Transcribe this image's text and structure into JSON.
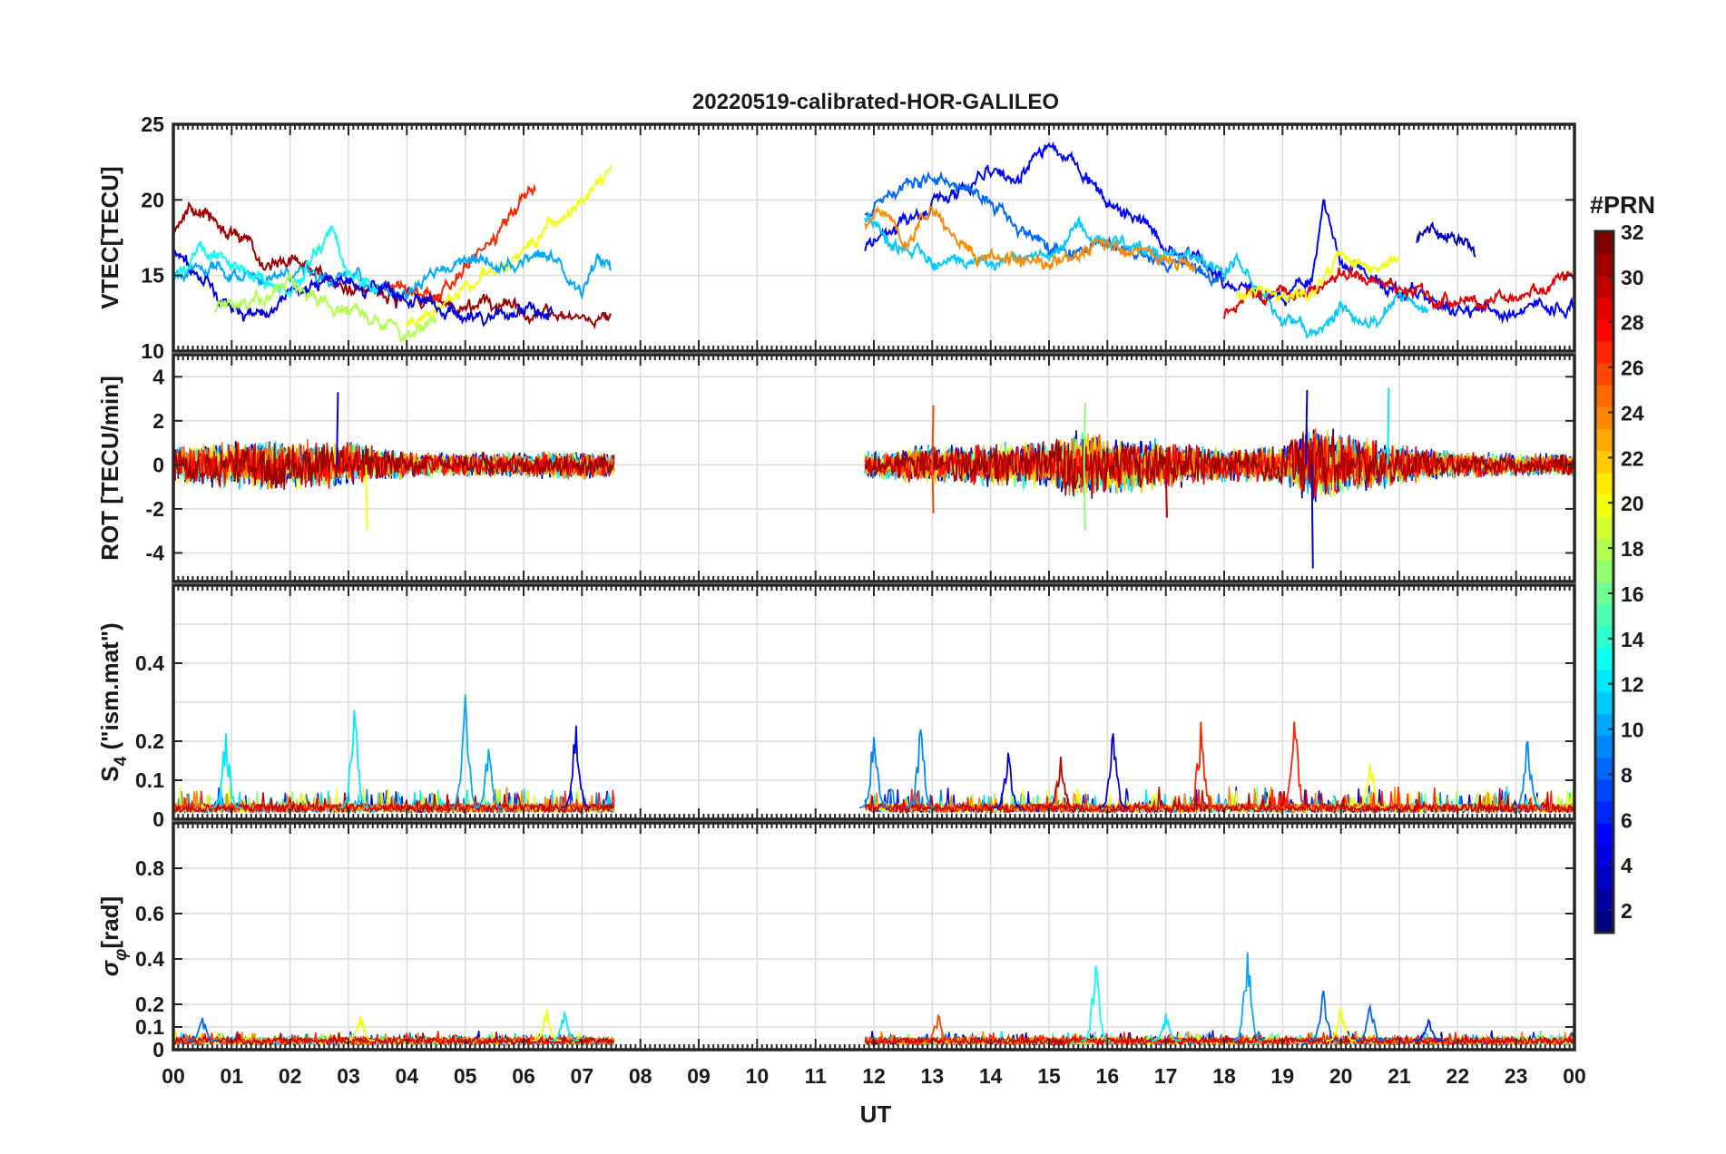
{
  "figure": {
    "title": "20220519-calibrated-HOR-GALILEO",
    "xlabel": "UT"
  },
  "x_ticks": [
    "00",
    "01",
    "02",
    "03",
    "04",
    "05",
    "06",
    "07",
    "08",
    "09",
    "10",
    "11",
    "12",
    "13",
    "14",
    "15",
    "16",
    "17",
    "18",
    "19",
    "20",
    "21",
    "22",
    "23",
    "00"
  ],
  "colorbar": {
    "title": "#PRN",
    "range": [
      1,
      32
    ],
    "ticks": [
      "2",
      "4",
      "6",
      "8",
      "10",
      "12",
      "14",
      "16",
      "18",
      "20",
      "22",
      "24",
      "26",
      "28",
      "30",
      "32"
    ],
    "colormap": "jet"
  },
  "chart_data": [
    {
      "type": "line",
      "id": "vtec",
      "ylabel": "VTEC[TECU]",
      "xlim": [
        0,
        24
      ],
      "ylim": [
        10,
        25
      ],
      "yticks": [
        "10",
        "15",
        "20",
        "25"
      ],
      "grid": true,
      "data_gaps_hours": [
        [
          7.55,
          11.85
        ]
      ],
      "series_note_prn_color": "series colored by PRN via colorbar",
      "series": [
        {
          "prn": 31,
          "points": [
            [
              0,
              18.5
            ],
            [
              0.5,
              19.2
            ],
            [
              1,
              18
            ],
            [
              1.5,
              16.5
            ],
            [
              2,
              15.8
            ],
            [
              2.5,
              15.2
            ],
            [
              3,
              14
            ],
            [
              3.5,
              13.6
            ],
            [
              4,
              13.5
            ],
            [
              4.5,
              13.4
            ],
            [
              5,
              12.8
            ],
            [
              5.5,
              13
            ],
            [
              6,
              12.6
            ],
            [
              6.5,
              12.2
            ],
            [
              7,
              12
            ],
            [
              7.5,
              12.5
            ]
          ],
          "segments": [
            [
              0,
              4.5
            ]
          ]
        },
        {
          "prn": 27,
          "points": [
            [
              3.6,
              14.5
            ],
            [
              4,
              13.8
            ],
            [
              4.5,
              14
            ],
            [
              5,
              15.2
            ],
            [
              5.5,
              17.5
            ],
            [
              6,
              20.2
            ],
            [
              6.2,
              20.6
            ]
          ]
        },
        {
          "prn": 20,
          "points": [
            [
              4,
              12
            ],
            [
              4.5,
              12.5
            ],
            [
              5,
              14
            ],
            [
              5.5,
              15.5
            ],
            [
              6,
              16.5
            ],
            [
              6.5,
              18.5
            ],
            [
              7,
              19.8
            ],
            [
              7.5,
              21.8
            ]
          ]
        },
        {
          "prn": 10,
          "points": [
            [
              0,
              15
            ],
            [
              0.5,
              15.5
            ],
            [
              1,
              15
            ],
            [
              2,
              15.3
            ],
            [
              3,
              14.5
            ],
            [
              4,
              14
            ],
            [
              5,
              16
            ],
            [
              6,
              15.8
            ],
            [
              6.5,
              16.5
            ],
            [
              7,
              14
            ],
            [
              7.3,
              16
            ],
            [
              7.5,
              15.3
            ]
          ]
        },
        {
          "prn": 4,
          "points": [
            [
              0,
              16.5
            ],
            [
              1,
              13
            ],
            [
              1.5,
              12
            ],
            [
              2,
              14
            ],
            [
              3,
              14.5
            ],
            [
              4,
              13.8
            ],
            [
              5,
              12.2
            ],
            [
              6,
              12.5
            ],
            [
              6.5,
              12.7
            ]
          ]
        },
        {
          "prn": 13,
          "points": [
            [
              0,
              15
            ],
            [
              0.5,
              16.5
            ],
            [
              1,
              15.5
            ],
            [
              2,
              14
            ],
            [
              2.7,
              17.9
            ],
            [
              3,
              15
            ],
            [
              3.5,
              14
            ]
          ]
        },
        {
          "prn": 18,
          "points": [
            [
              0.7,
              12.8
            ],
            [
              1,
              13
            ],
            [
              2,
              14.5
            ],
            [
              3,
              13
            ],
            [
              3.5,
              12
            ],
            [
              4,
              11.2
            ],
            [
              4.5,
              12.5
            ]
          ]
        },
        {
          "prn": 5,
          "points": [
            [
              11.85,
              17
            ],
            [
              12.5,
              18.5
            ],
            [
              13,
              19.5
            ],
            [
              14,
              22
            ],
            [
              14.5,
              21.5
            ],
            [
              15,
              23.8
            ],
            [
              15.5,
              22
            ],
            [
              16,
              20
            ],
            [
              16.5,
              19
            ],
            [
              17,
              17
            ],
            [
              17.5,
              16.5
            ],
            [
              18,
              14.5
            ],
            [
              18.5,
              13.8
            ],
            [
              19,
              13.5
            ],
            [
              19.5,
              14.5
            ],
            [
              19.7,
              20
            ],
            [
              20,
              16
            ],
            [
              20.5,
              15
            ],
            [
              21,
              14
            ],
            [
              21.5,
              13.5
            ],
            [
              22,
              12.5
            ],
            [
              22.5,
              12.8
            ],
            [
              23,
              12.5
            ],
            [
              23.5,
              12.8
            ],
            [
              24,
              13
            ]
          ]
        },
        {
          "prn": 8,
          "points": [
            [
              11.85,
              19
            ],
            [
              12.3,
              20.5
            ],
            [
              13,
              21.5
            ],
            [
              13.5,
              21
            ],
            [
              14,
              20
            ],
            [
              14.5,
              18
            ],
            [
              15,
              17
            ],
            [
              15.5,
              16.5
            ],
            [
              16,
              17
            ],
            [
              16.5,
              16.5
            ],
            [
              17,
              16
            ],
            [
              17.5,
              15.5
            ],
            [
              18,
              15
            ]
          ]
        },
        {
          "prn": 11,
          "points": [
            [
              11.85,
              19
            ],
            [
              12.3,
              17
            ],
            [
              13,
              16
            ],
            [
              14,
              15.8
            ],
            [
              15,
              16.2
            ],
            [
              15.5,
              18.5
            ],
            [
              16,
              17
            ],
            [
              17,
              16.5
            ],
            [
              17.5,
              16.5
            ],
            [
              18,
              15
            ],
            [
              18.2,
              16.5
            ],
            [
              18.5,
              14
            ],
            [
              19,
              12
            ],
            [
              19.5,
              11
            ],
            [
              20,
              13
            ],
            [
              20.5,
              12
            ],
            [
              21,
              13.5
            ],
            [
              21.5,
              13
            ]
          ]
        },
        {
          "prn": 24,
          "points": [
            [
              11.85,
              18.5
            ],
            [
              12.2,
              19.5
            ],
            [
              12.5,
              17
            ],
            [
              13,
              19.5
            ],
            [
              13.5,
              17
            ],
            [
              14,
              16
            ],
            [
              15,
              16.2
            ],
            [
              16,
              17
            ],
            [
              16.5,
              16.5
            ],
            [
              17,
              16
            ],
            [
              17.5,
              15.5
            ]
          ]
        },
        {
          "prn": 29,
          "points": [
            [
              18,
              12.5
            ],
            [
              18.5,
              13.5
            ],
            [
              19,
              13.8
            ],
            [
              19.5,
              14
            ],
            [
              20,
              15.5
            ],
            [
              20.5,
              14.5
            ],
            [
              21,
              14
            ],
            [
              22,
              13
            ],
            [
              23,
              13.5
            ],
            [
              23.6,
              14.5
            ],
            [
              24,
              15.2
            ]
          ]
        },
        {
          "prn": 20,
          "points": [
            [
              18.2,
              14
            ],
            [
              19,
              13.5
            ],
            [
              19.5,
              14
            ],
            [
              20,
              16.5
            ],
            [
              20.5,
              15.5
            ],
            [
              21,
              16
            ]
          ]
        },
        {
          "prn": 3,
          "points": [
            [
              21.3,
              17.5
            ],
            [
              21.6,
              18
            ],
            [
              22,
              17.5
            ],
            [
              22.3,
              16.8
            ]
          ]
        }
      ]
    },
    {
      "type": "line",
      "id": "rot",
      "ylabel": "ROT [TECU/min]",
      "xlim": [
        0,
        24
      ],
      "ylim": [
        -5.3,
        5
      ],
      "yticks": [
        "-4",
        "-2",
        "0",
        "2",
        "4"
      ],
      "grid": true,
      "data_segments_hours": [
        [
          0,
          7.55
        ],
        [
          11.85,
          24
        ]
      ],
      "noise_envelope": [
        [
          0,
          1.2
        ],
        [
          1,
          1.4
        ],
        [
          2,
          1.6
        ],
        [
          3,
          1.4
        ],
        [
          4,
          0.8
        ],
        [
          5,
          0.7
        ],
        [
          6,
          0.8
        ],
        [
          7,
          0.9
        ],
        [
          7.55,
          0.7
        ],
        [
          11.85,
          0.8
        ],
        [
          13,
          1.2
        ],
        [
          15,
          1.5
        ],
        [
          15.5,
          2.2
        ],
        [
          16,
          1.8
        ],
        [
          17,
          1.5
        ],
        [
          18,
          1
        ],
        [
          19,
          1.2
        ],
        [
          19.5,
          2.5
        ],
        [
          20,
          2
        ],
        [
          21,
          1.2
        ],
        [
          22,
          0.8
        ],
        [
          23,
          0.7
        ],
        [
          24,
          0.7
        ]
      ],
      "annotated_spikes": [
        {
          "x": 2.8,
          "y": 3.3
        },
        {
          "x": 3.3,
          "y": -3
        },
        {
          "x": 13,
          "y": 2.7
        },
        {
          "x": 13,
          "y": -2.2
        },
        {
          "x": 15.6,
          "y": 2.8
        },
        {
          "x": 15.6,
          "y": -3
        },
        {
          "x": 17,
          "y": -2.4
        },
        {
          "x": 19.5,
          "y": -4.7
        },
        {
          "x": 19.4,
          "y": 3.4
        },
        {
          "x": 20.8,
          "y": 3.5
        }
      ]
    },
    {
      "type": "line",
      "id": "s4",
      "ylabel": "S4 (\"ism.mat\")",
      "ylabel_main": "S",
      "ylabel_sub": "4",
      "ylabel_rest": " (\"ism.mat\")",
      "xlim": [
        0,
        24
      ],
      "ylim": [
        0,
        0.6
      ],
      "yticks": [
        "0",
        "0.1",
        "0.2",
        "0.4"
      ],
      "ytick_values": [
        0,
        0.1,
        0.2,
        0.4
      ],
      "grid_lines": [
        0.1,
        0.2,
        0.3,
        0.4,
        0.5
      ],
      "data_segments_hours": [
        [
          0,
          7.55
        ],
        [
          11.85,
          24
        ]
      ],
      "baseline": 0.03,
      "annotated_spikes": [
        {
          "x": 0.9,
          "y": 0.22,
          "prn": 12
        },
        {
          "x": 3.1,
          "y": 0.28,
          "prn": 12
        },
        {
          "x": 5,
          "y": 0.32,
          "prn": 10
        },
        {
          "x": 5.4,
          "y": 0.18,
          "prn": 10
        },
        {
          "x": 6.9,
          "y": 0.24,
          "prn": 4
        },
        {
          "x": 12,
          "y": 0.21,
          "prn": 9
        },
        {
          "x": 12.8,
          "y": 0.23,
          "prn": 9
        },
        {
          "x": 14.3,
          "y": 0.17,
          "prn": 4
        },
        {
          "x": 15.2,
          "y": 0.16,
          "prn": 30
        },
        {
          "x": 16.1,
          "y": 0.22,
          "prn": 4
        },
        {
          "x": 17.6,
          "y": 0.25,
          "prn": 27
        },
        {
          "x": 19.2,
          "y": 0.25,
          "prn": 27
        },
        {
          "x": 20.5,
          "y": 0.14,
          "prn": 20
        },
        {
          "x": 23.2,
          "y": 0.2,
          "prn": 9
        }
      ]
    },
    {
      "type": "line",
      "id": "sigma_phi",
      "ylabel": "σφ[rad]",
      "ylabel_main": "σ",
      "ylabel_sub": "φ",
      "ylabel_rest": "[rad]",
      "xlim": [
        0,
        24
      ],
      "ylim": [
        0,
        1
      ],
      "yticks": [
        "0",
        "0.1",
        "0.2",
        "0.4",
        "0.6",
        "0.8"
      ],
      "ytick_values": [
        0,
        0.1,
        0.2,
        0.4,
        0.6,
        0.8
      ],
      "grid_lines": [
        0.1,
        0.2,
        0.4,
        0.6,
        0.8
      ],
      "data_segments_hours": [
        [
          0,
          7.55
        ],
        [
          11.85,
          24
        ]
      ],
      "baseline": 0.04,
      "annotated_spikes": [
        {
          "x": 0.5,
          "y": 0.14,
          "prn": 8
        },
        {
          "x": 3.2,
          "y": 0.15,
          "prn": 20
        },
        {
          "x": 6.4,
          "y": 0.18,
          "prn": 20
        },
        {
          "x": 6.7,
          "y": 0.16,
          "prn": 12
        },
        {
          "x": 13.1,
          "y": 0.15,
          "prn": 26
        },
        {
          "x": 15.8,
          "y": 0.37,
          "prn": 13
        },
        {
          "x": 17,
          "y": 0.16,
          "prn": 12
        },
        {
          "x": 18.4,
          "y": 0.43,
          "prn": 10
        },
        {
          "x": 19.7,
          "y": 0.26,
          "prn": 8
        },
        {
          "x": 20,
          "y": 0.18,
          "prn": 20
        },
        {
          "x": 20.5,
          "y": 0.19,
          "prn": 8
        },
        {
          "x": 21.5,
          "y": 0.13,
          "prn": 6
        }
      ]
    }
  ]
}
